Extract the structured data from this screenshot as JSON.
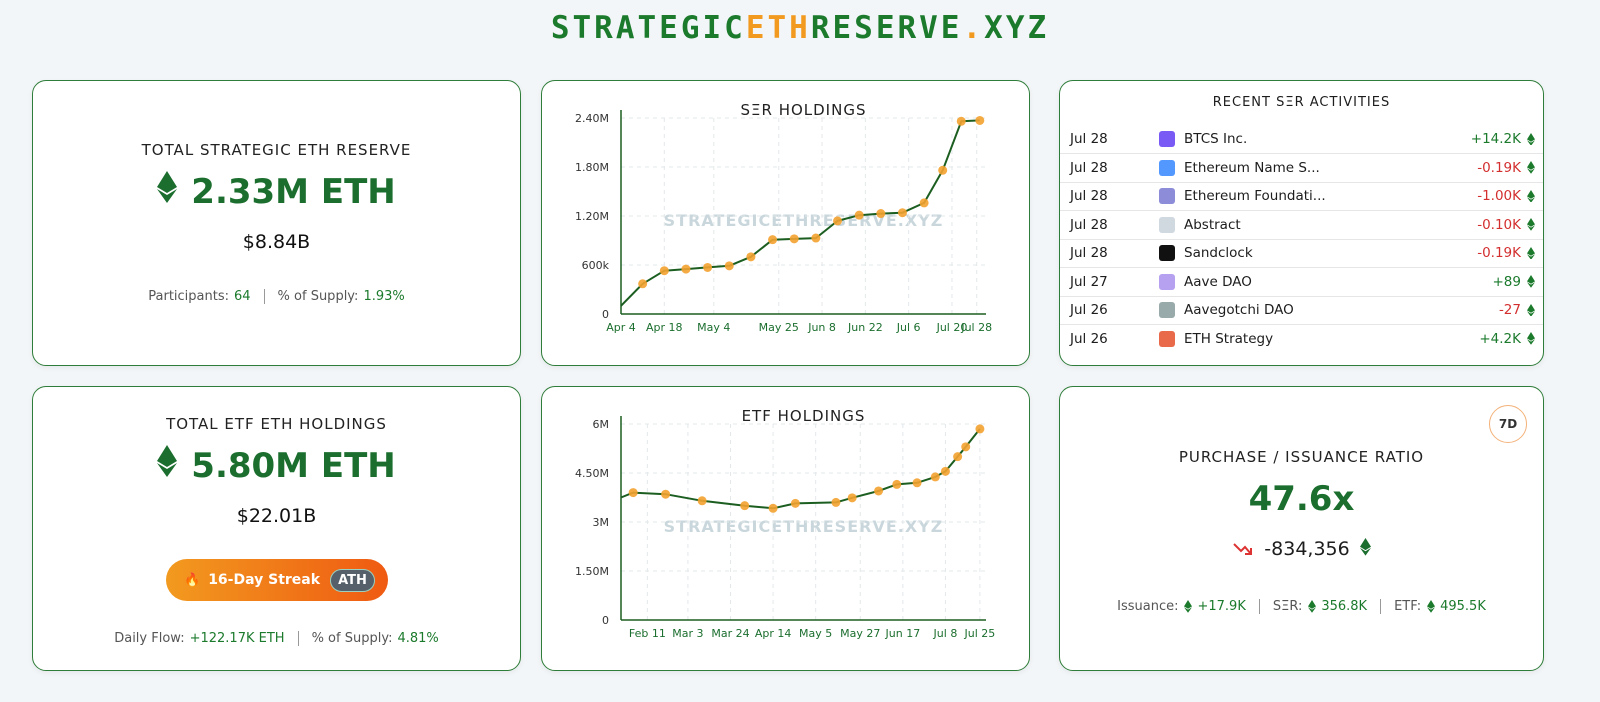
{
  "header": {
    "title_parts": [
      {
        "text": "STRATEGIC",
        "color": "#1b7a2c"
      },
      {
        "text": "ETH",
        "color": "#f29a1f"
      },
      {
        "text": "RESERVE",
        "color": "#1b7a2c"
      },
      {
        "text": ".",
        "color": "#f29a1f"
      },
      {
        "text": "XYZ",
        "color": "#1b7a2c"
      }
    ]
  },
  "reserve_card": {
    "title": "TOTAL STRATEGIC ETH RESERVE",
    "amount": "2.33M ETH",
    "usd": "$8.84B",
    "stats": [
      {
        "label": "Participants:",
        "value": "64"
      },
      {
        "label": "% of Supply:",
        "value": "1.93%"
      }
    ]
  },
  "etf_card": {
    "title": "TOTAL ETF ETH HOLDINGS",
    "amount": "5.80M ETH",
    "usd": "$22.01B",
    "streak": "16-Day Streak",
    "streak_badge": "ATH",
    "stats": [
      {
        "label": "Daily Flow:",
        "value": "+122.17K ETH"
      },
      {
        "label": "% of Supply:",
        "value": "4.81%"
      }
    ]
  },
  "activities": {
    "title": "RECENT SΞR ACTIVITIES",
    "rows": [
      {
        "date": "Jul 28",
        "name": "BTCS Inc.",
        "amount": "+14.2K"
      },
      {
        "date": "Jul 28",
        "name": "Ethereum Name S...",
        "amount": "-0.19K"
      },
      {
        "date": "Jul 28",
        "name": "Ethereum Foundati...",
        "amount": "-1.00K"
      },
      {
        "date": "Jul 28",
        "name": "Abstract",
        "amount": "-0.10K"
      },
      {
        "date": "Jul 28",
        "name": "Sandclock",
        "amount": "-0.19K"
      },
      {
        "date": "Jul 27",
        "name": "Aave DAO",
        "amount": "+89"
      },
      {
        "date": "Jul 26",
        "name": "Aavegotchi DAO",
        "amount": "-27"
      },
      {
        "date": "Jul 26",
        "name": "ETH Strategy",
        "amount": "+4.2K"
      }
    ]
  },
  "ratio_card": {
    "period": "7D",
    "title": "PURCHASE / ISSUANCE RATIO",
    "value": "47.6x",
    "change": "-834,356",
    "stats": [
      {
        "label": "Issuance:",
        "value": "+17.9K"
      },
      {
        "label": "SΞR:",
        "value": "356.8K"
      },
      {
        "label": "ETF:",
        "value": "495.5K"
      }
    ]
  },
  "chart_data": [
    {
      "type": "line",
      "title": "SΞR HOLDINGS",
      "watermark": "STRATEGICETHRESERVE.XYZ",
      "grid": true,
      "xlim": [
        "Apr 4",
        "Jul 31"
      ],
      "xticks": [
        "Apr 4",
        "Apr 18",
        "May 4",
        "May 25",
        "Jun 8",
        "Jun 22",
        "Jul 6",
        "Jul 20",
        "Jul 28"
      ],
      "ylim": [
        0,
        2400000
      ],
      "yticks": [
        0,
        {
          "value": 600000,
          "label": "600k"
        },
        {
          "value": 1200000,
          "label": "1.20M"
        },
        {
          "value": 1800000,
          "label": "1.80M"
        },
        {
          "value": 2400000,
          "label": "2.40M"
        }
      ],
      "series": [
        {
          "color": "#1b5e20",
          "marker_color": "#f4a230",
          "x": [
            "Apr 4",
            "Apr 11",
            "Apr 18",
            "Apr 25",
            "May 2",
            "May 9",
            "May 16",
            "May 23",
            "May 30",
            "Jun 6",
            "Jun 13",
            "Jun 20",
            "Jun 27",
            "Jul 4",
            "Jul 11",
            "Jul 17",
            "Jul 23",
            "Jul 29"
          ],
          "values": [
            100000,
            370000,
            530000,
            550000,
            570000,
            590000,
            700000,
            910000,
            920000,
            930000,
            1140000,
            1210000,
            1230000,
            1240000,
            1360000,
            1760000,
            2360000,
            2370000
          ]
        }
      ]
    },
    {
      "type": "line",
      "title": "ETF HOLDINGS",
      "watermark": "STRATEGICETHRESERVE.XYZ",
      "grid": true,
      "xlim": [
        "Jan 29",
        "Jul 28"
      ],
      "xticks": [
        "Feb 11",
        "Mar 3",
        "Mar 24",
        "Apr 14",
        "May 5",
        "May 27",
        "Jun 17",
        "Jul 8",
        "Jul 25"
      ],
      "ylim": [
        0,
        6000000
      ],
      "yticks": [
        0,
        {
          "value": 1500000,
          "label": "1.50M"
        },
        {
          "value": 3000000,
          "label": "3M"
        },
        {
          "value": 4500000,
          "label": "4.50M"
        },
        {
          "value": 6000000,
          "label": "6M"
        }
      ],
      "series": [
        {
          "color": "#1b5e20",
          "marker_color": "#f4a230",
          "x": [
            "Jan 29",
            "Feb 4",
            "Feb 20",
            "Mar 10",
            "Mar 31",
            "Apr 14",
            "Apr 25",
            "May 15",
            "May 23",
            "Jun 5",
            "Jun 14",
            "Jun 24",
            "Jul 3",
            "Jul 8",
            "Jul 14",
            "Jul 18",
            "Jul 25"
          ],
          "values": [
            3750000,
            3900000,
            3850000,
            3650000,
            3500000,
            3420000,
            3570000,
            3600000,
            3740000,
            3950000,
            4150000,
            4200000,
            4380000,
            4550000,
            5000000,
            5300000,
            5850000
          ]
        }
      ]
    }
  ]
}
